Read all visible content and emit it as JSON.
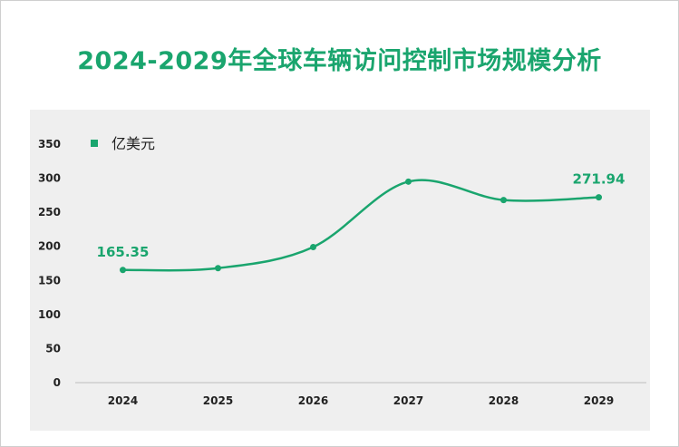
{
  "chart_data": {
    "type": "line",
    "title": "2024-2029年全球车辆访问控制市场规模分析",
    "xlabel": "",
    "ylabel": "",
    "categories": [
      "2024",
      "2025",
      "2026",
      "2027",
      "2028",
      "2029"
    ],
    "series": [
      {
        "name": "亿美元",
        "values": [
          165.35,
          168,
          199,
          295,
          268,
          271.94
        ],
        "data_labels": [
          "165.35",
          "",
          "",
          "",
          "",
          "271.94"
        ]
      }
    ],
    "ylim": [
      0,
      350
    ],
    "yticks": [
      "0",
      "50",
      "100",
      "150",
      "200",
      "250",
      "300",
      "350"
    ],
    "legend_position": "top-left",
    "grid": false,
    "smooth": true
  },
  "colors": {
    "series": "#1aa56e",
    "title": "#1aa56e",
    "plot_background": "#efefef"
  }
}
